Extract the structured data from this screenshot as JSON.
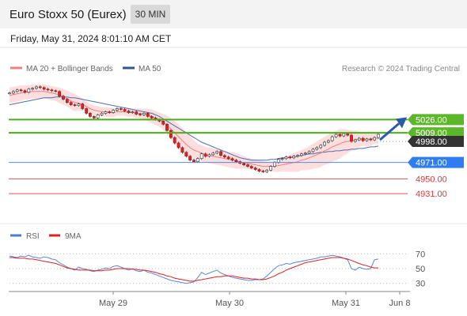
{
  "header": {
    "title": "Euro Stoxx 50 (Eurex)",
    "timeframe": "30 MIN",
    "datetime": "Friday, May 31, 2024 8:01:10 AM CET"
  },
  "legend_price": [
    {
      "label": "MA 20 + Bollinger Bands",
      "color": "#f08080"
    },
    {
      "label": "MA 50",
      "color": "#2f5597"
    }
  ],
  "legend_rsi": [
    {
      "label": "RSI",
      "color": "#4a7bd0"
    },
    {
      "label": "9MA",
      "color": "#e02020"
    }
  ],
  "credit": "Research © 2024 Trading Central",
  "chart_data": [
    {
      "type": "line",
      "title": "",
      "ylim": [
        4918,
        5078
      ],
      "x_tick_labels": [
        "May 29",
        "May 30",
        "May 31",
        "Jun 8"
      ],
      "grid": false,
      "legend_position": "top-left",
      "levels": [
        {
          "value": 5026.0,
          "label": "5026.00",
          "color": "#4caf1a",
          "style": "line",
          "tag": "green"
        },
        {
          "value": 5009.0,
          "label": "5009.00",
          "color": "#4caf1a",
          "style": "line",
          "tag": "green"
        },
        {
          "value": 4998.0,
          "label": "4998.00",
          "color": "#999999",
          "style": "dotted",
          "tag": "dark"
        },
        {
          "value": 4971.0,
          "label": "4971.00",
          "color": "#5588ee",
          "style": "line",
          "tag": "blue"
        },
        {
          "value": 4950.0,
          "label": "4950.00",
          "color": "#e05050",
          "style": "line",
          "tag": "text"
        },
        {
          "value": 4931.0,
          "label": "4931.00",
          "color": "#e05050",
          "style": "line",
          "tag": "text"
        }
      ],
      "series": [
        {
          "kind": "candles",
          "values": [
            5060,
            5062,
            5064,
            5063,
            5061,
            5065,
            5066,
            5068,
            5067,
            5065,
            5064,
            5063,
            5062,
            5056,
            5052,
            5048,
            5045,
            5044,
            5046,
            5040,
            5034,
            5030,
            5028,
            5032,
            5034,
            5036,
            5035,
            5038,
            5040,
            5039,
            5037,
            5035,
            5036,
            5033,
            5032,
            5034,
            5030,
            5028,
            5026,
            5024,
            5020,
            5012,
            5003,
            4996,
            4990,
            4984,
            4979,
            4974,
            4972,
            4976,
            4982,
            4979,
            4981,
            4983,
            4985,
            4980,
            4978,
            4976,
            4974,
            4972,
            4970,
            4968,
            4966,
            4964,
            4962,
            4960,
            4959,
            4961,
            4966,
            4971,
            4975,
            4976,
            4978,
            4977,
            4979,
            4980,
            4982,
            4983,
            4985,
            4988,
            4990,
            4993,
            4997,
            4999,
            5004,
            5007,
            5005,
            5008,
            5006,
            4998,
            5000,
            5002,
            4999,
            5001,
            5000,
            5003,
            5007
          ]
        },
        {
          "kind": "ma",
          "name": "MA 20",
          "values": [
            5057,
            5058,
            5059,
            5060,
            5061,
            5061,
            5062,
            5062,
            5062,
            5062,
            5061,
            5060,
            5059,
            5057,
            5055,
            5053,
            5050,
            5048,
            5047,
            5045,
            5043,
            5040,
            5038,
            5037,
            5036,
            5036,
            5035,
            5035,
            5036,
            5036,
            5036,
            5035,
            5035,
            5034,
            5034,
            5033,
            5032,
            5030,
            5028,
            5026,
            5023,
            5019,
            5014,
            5009,
            5004,
            4999,
            4994,
            4990,
            4987,
            4985,
            4983,
            4981,
            4980,
            4979,
            4978,
            4977,
            4976,
            4975,
            4974,
            4973,
            4972,
            4971,
            4970,
            4969,
            4968,
            4967,
            4966,
            4966,
            4966,
            4966,
            4967,
            4968,
            4969,
            4970,
            4971,
            4972,
            4974,
            4975,
            4977,
            4979,
            4981,
            4983,
            4986,
            4988,
            4991,
            4993,
            4995,
            4997,
            4998,
            4999,
            5000,
            5001,
            5001,
            5001,
            5001,
            5002,
            5002
          ]
        },
        {
          "kind": "band_upper",
          "values": [
            5067,
            5068,
            5069,
            5070,
            5070,
            5070,
            5071,
            5071,
            5071,
            5071,
            5070,
            5069,
            5068,
            5067,
            5065,
            5063,
            5061,
            5059,
            5056,
            5053,
            5049,
            5046,
            5044,
            5043,
            5042,
            5042,
            5041,
            5041,
            5041,
            5041,
            5041,
            5041,
            5040,
            5040,
            5040,
            5040,
            5040,
            5039,
            5037,
            5035,
            5033,
            5031,
            5028,
            5024,
            5020,
            5015,
            5010,
            5005,
            5000,
            4995,
            4993,
            4991,
            4990,
            4989,
            4988,
            4987,
            4986,
            4985,
            4984,
            4983,
            4981,
            4979,
            4977,
            4976,
            4975,
            4974,
            4973,
            4972,
            4972,
            4973,
            4975,
            4977,
            4979,
            4981,
            4983,
            4985,
            4987,
            4989,
            4992,
            4995,
            4998,
            5001,
            5004,
            5007,
            5010,
            5012,
            5014,
            5014,
            5013,
            5012,
            5012,
            5011,
            5010,
            5010,
            5010,
            5009,
            5010
          ]
        },
        {
          "kind": "band_lower",
          "values": [
            5047,
            5048,
            5049,
            5050,
            5052,
            5052,
            5053,
            5053,
            5053,
            5053,
            5052,
            5051,
            5050,
            5047,
            5045,
            5043,
            5039,
            5037,
            5038,
            5037,
            5037,
            5034,
            5032,
            5031,
            5030,
            5030,
            5029,
            5029,
            5031,
            5031,
            5031,
            5029,
            5030,
            5028,
            5028,
            5026,
            5024,
            5021,
            5019,
            5017,
            5013,
            5007,
            5000,
            4994,
            4988,
            4983,
            4978,
            4975,
            4974,
            4975,
            4973,
            4971,
            4970,
            4969,
            4968,
            4967,
            4966,
            4965,
            4964,
            4963,
            4963,
            4963,
            4963,
            4962,
            4961,
            4960,
            4959,
            4960,
            4960,
            4959,
            4959,
            4959,
            4959,
            4959,
            4959,
            4959,
            4961,
            4961,
            4962,
            4963,
            4964,
            4965,
            4968,
            4969,
            4972,
            4974,
            4976,
            4980,
            4983,
            4986,
            4988,
            4991,
            4992,
            4992,
            4992,
            4995,
            4994
          ]
        },
        {
          "kind": "ma",
          "name": "MA 50",
          "values": [
            5045,
            5046,
            5047,
            5048,
            5049,
            5050,
            5051,
            5052,
            5053,
            5054,
            5054,
            5054,
            5055,
            5055,
            5055,
            5055,
            5054,
            5054,
            5053,
            5052,
            5051,
            5050,
            5049,
            5048,
            5047,
            5046,
            5045,
            5044,
            5043,
            5042,
            5041,
            5040,
            5039,
            5038,
            5037,
            5036,
            5035,
            5034,
            5032,
            5030,
            5027,
            5024,
            5021,
            5018,
            5015,
            5012,
            5009,
            5006,
            5003,
            5000,
            4997,
            4995,
            4993,
            4991,
            4989,
            4987,
            4985,
            4983,
            4981,
            4979,
            4977,
            4976,
            4975,
            4974,
            4974,
            4974,
            4974,
            4974,
            4975,
            4975,
            4976,
            4977,
            4977,
            4978,
            4978,
            4979,
            4980,
            4981,
            4982,
            4982,
            4983,
            4984,
            4984,
            4985,
            4985,
            4986,
            4986,
            4987,
            4987,
            4988,
            4988,
            4989,
            4989,
            4990,
            4991,
            4991,
            4992
          ]
        }
      ],
      "projection": {
        "from": 5000,
        "to": 5026
      }
    },
    {
      "type": "line",
      "title": "",
      "ylim": [
        20,
        80
      ],
      "ticks": [
        70,
        50,
        30
      ],
      "series": [
        {
          "name": "RSI",
          "values": [
            67,
            66,
            65,
            67,
            66,
            68,
            66,
            65,
            64,
            66,
            65,
            63,
            62,
            58,
            55,
            52,
            50,
            48,
            52,
            50,
            49,
            47,
            46,
            48,
            49,
            51,
            50,
            53,
            54,
            52,
            50,
            48,
            50,
            47,
            46,
            48,
            45,
            44,
            42,
            40,
            38,
            36,
            34,
            33,
            32,
            31,
            30,
            31,
            32,
            38,
            45,
            42,
            44,
            46,
            48,
            44,
            42,
            40,
            38,
            37,
            36,
            35,
            34,
            34,
            35,
            35,
            36,
            40,
            45,
            50,
            54,
            55,
            57,
            56,
            58,
            59,
            60,
            61,
            62,
            63,
            64,
            66,
            66,
            67,
            68,
            67,
            66,
            64,
            62,
            50,
            48,
            52,
            50,
            49,
            50,
            62,
            63
          ]
        },
        {
          "name": "9MA",
          "values": [
            65,
            65,
            64,
            64,
            64,
            63,
            63,
            62,
            61,
            60,
            59,
            58,
            57,
            55,
            53,
            51,
            50,
            49,
            48,
            48,
            48,
            48,
            47,
            47,
            47,
            48,
            48,
            49,
            50,
            50,
            50,
            50,
            49,
            49,
            48,
            48,
            47,
            46,
            45,
            43,
            42,
            40,
            39,
            37,
            36,
            35,
            34,
            33,
            33,
            34,
            35,
            36,
            37,
            38,
            39,
            39,
            40,
            40,
            40,
            39,
            38,
            37,
            37,
            36,
            36,
            35,
            35,
            36,
            38,
            40,
            43,
            45,
            48,
            50,
            52,
            54,
            56,
            58,
            59,
            60,
            61,
            62,
            63,
            64,
            65,
            65,
            65,
            64,
            63,
            61,
            59,
            57,
            55,
            54,
            52,
            51,
            51
          ]
        }
      ]
    }
  ]
}
